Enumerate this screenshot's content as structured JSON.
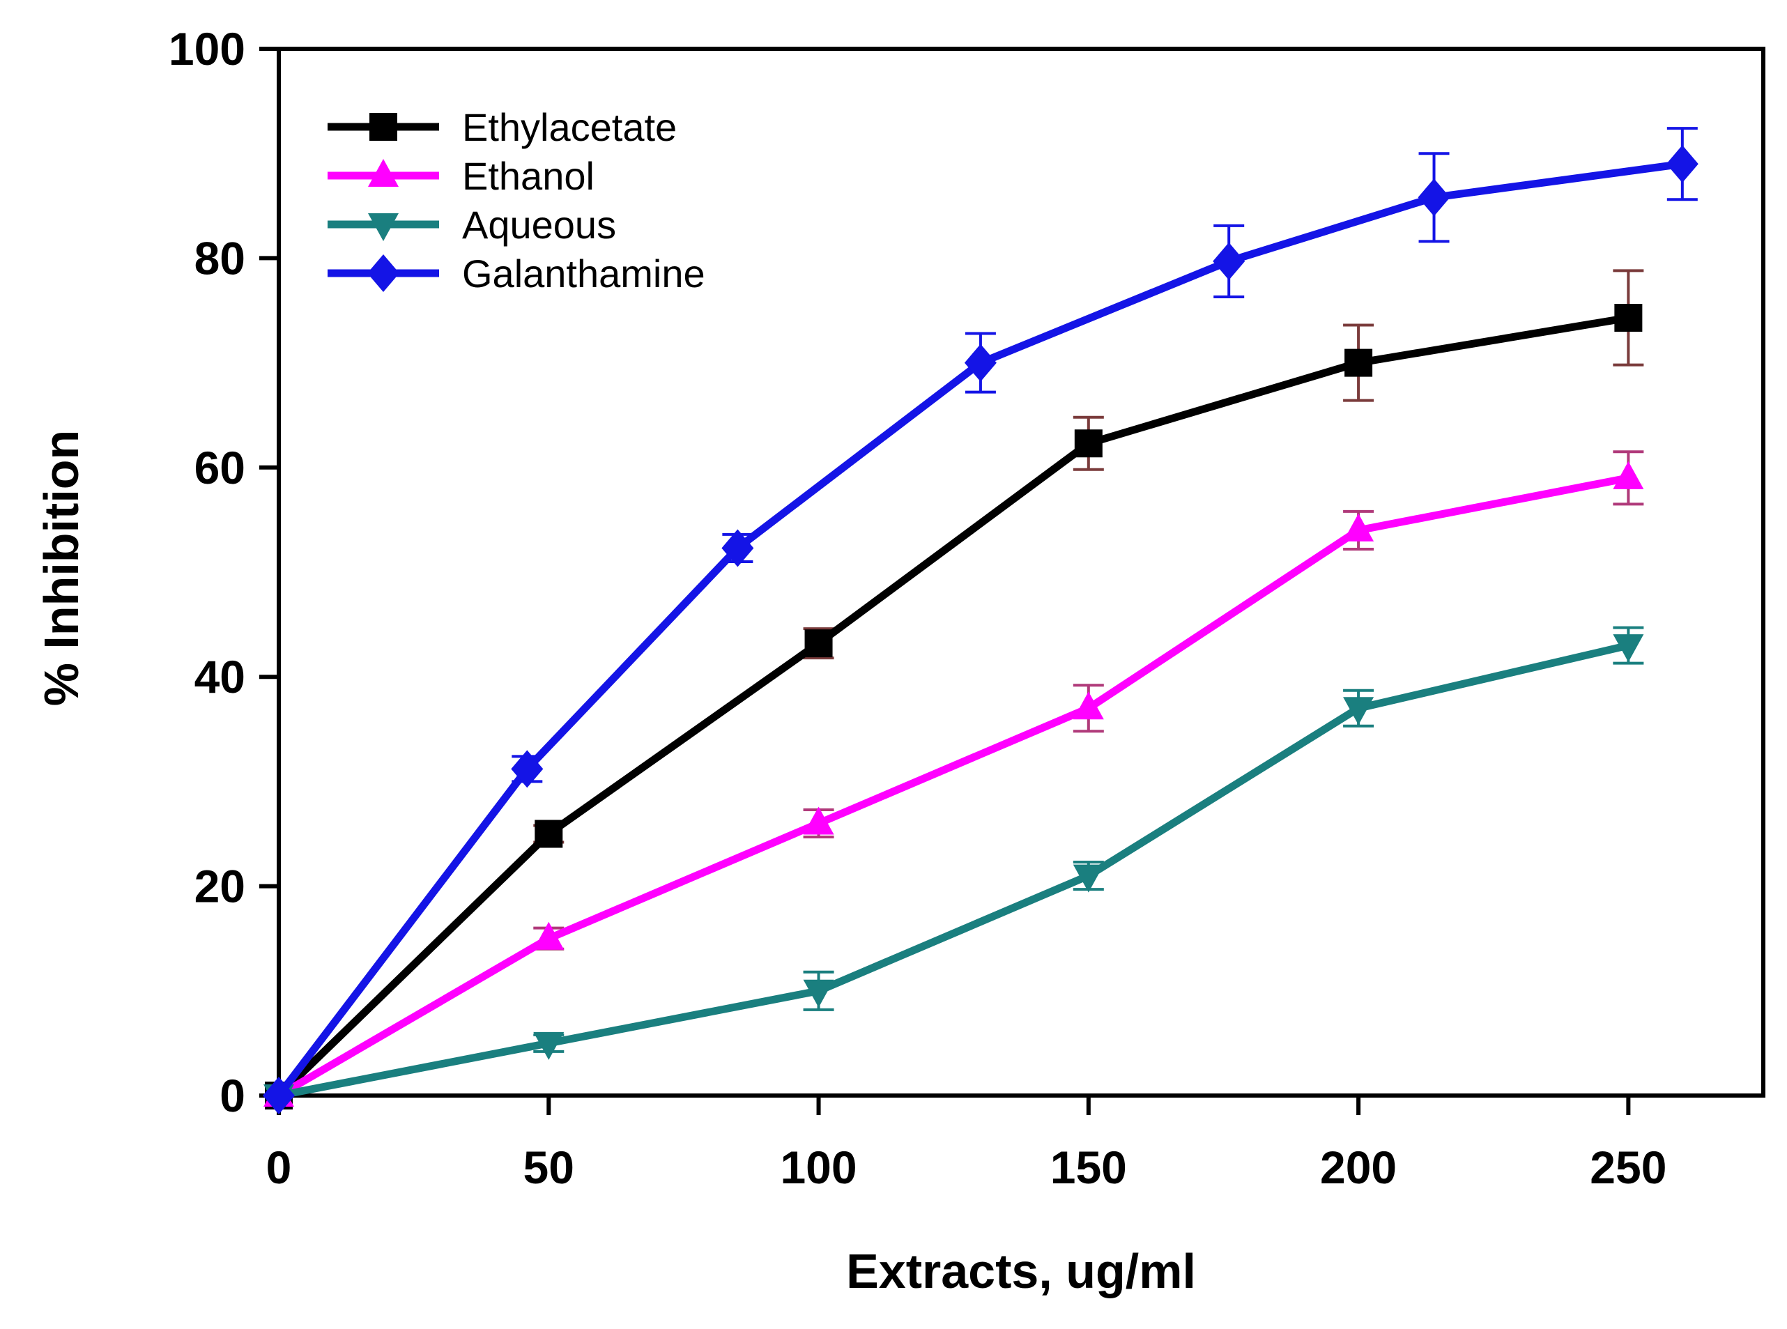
{
  "chart_data": {
    "type": "line",
    "title": "",
    "xlabel": "Extracts, ug/ml",
    "ylabel": "% Inhibition",
    "xlim": [
      0,
      275
    ],
    "ylim": [
      0,
      100
    ],
    "xticks": [
      0,
      50,
      100,
      150,
      200,
      250
    ],
    "yticks": [
      0,
      20,
      40,
      60,
      80,
      100
    ],
    "grid": false,
    "legend_position": "top-left",
    "series": [
      {
        "name": "Ethylacetate",
        "color": "#000000",
        "marker": "square",
        "points": [
          {
            "x": 0,
            "y": 0,
            "err": 0
          },
          {
            "x": 50,
            "y": 25,
            "err": 0.8
          },
          {
            "x": 100,
            "y": 43.2,
            "err": 1.4
          },
          {
            "x": 150,
            "y": 62.3,
            "err": 2.5
          },
          {
            "x": 200,
            "y": 70,
            "err": 3.6
          },
          {
            "x": 250,
            "y": 74.3,
            "err": 4.5
          }
        ],
        "error_bar_color": "#7a3b3b"
      },
      {
        "name": "Ethanol",
        "color": "#ff00ff",
        "marker": "triangle-up",
        "points": [
          {
            "x": 0,
            "y": 0,
            "err": 0
          },
          {
            "x": 50,
            "y": 15,
            "err": 1.0
          },
          {
            "x": 100,
            "y": 26,
            "err": 1.3
          },
          {
            "x": 150,
            "y": 37,
            "err": 2.2
          },
          {
            "x": 200,
            "y": 54,
            "err": 1.8
          },
          {
            "x": 250,
            "y": 59,
            "err": 2.5
          }
        ],
        "error_bar_color": "#b03a7a"
      },
      {
        "name": "Aqueous",
        "color": "#1a7f7f",
        "marker": "triangle-down",
        "points": [
          {
            "x": 0,
            "y": 0,
            "err": 0
          },
          {
            "x": 50,
            "y": 5,
            "err": 0.8
          },
          {
            "x": 100,
            "y": 10,
            "err": 1.8
          },
          {
            "x": 150,
            "y": 21,
            "err": 1.3
          },
          {
            "x": 200,
            "y": 37,
            "err": 1.7
          },
          {
            "x": 250,
            "y": 43,
            "err": 1.7
          }
        ],
        "error_bar_color": "#1a7f7f"
      },
      {
        "name": "Galanthamine",
        "color": "#1414e6",
        "marker": "diamond",
        "points": [
          {
            "x": 0,
            "y": 0,
            "err": 0
          },
          {
            "x": 46,
            "y": 31.2,
            "err": 1.2
          },
          {
            "x": 85,
            "y": 52.3,
            "err": 1.3
          },
          {
            "x": 130,
            "y": 70,
            "err": 2.8
          },
          {
            "x": 176,
            "y": 79.7,
            "err": 3.4
          },
          {
            "x": 214,
            "y": 85.8,
            "err": 4.2
          },
          {
            "x": 260,
            "y": 89,
            "err": 3.4
          }
        ],
        "error_bar_color": "#1414e6"
      }
    ]
  }
}
